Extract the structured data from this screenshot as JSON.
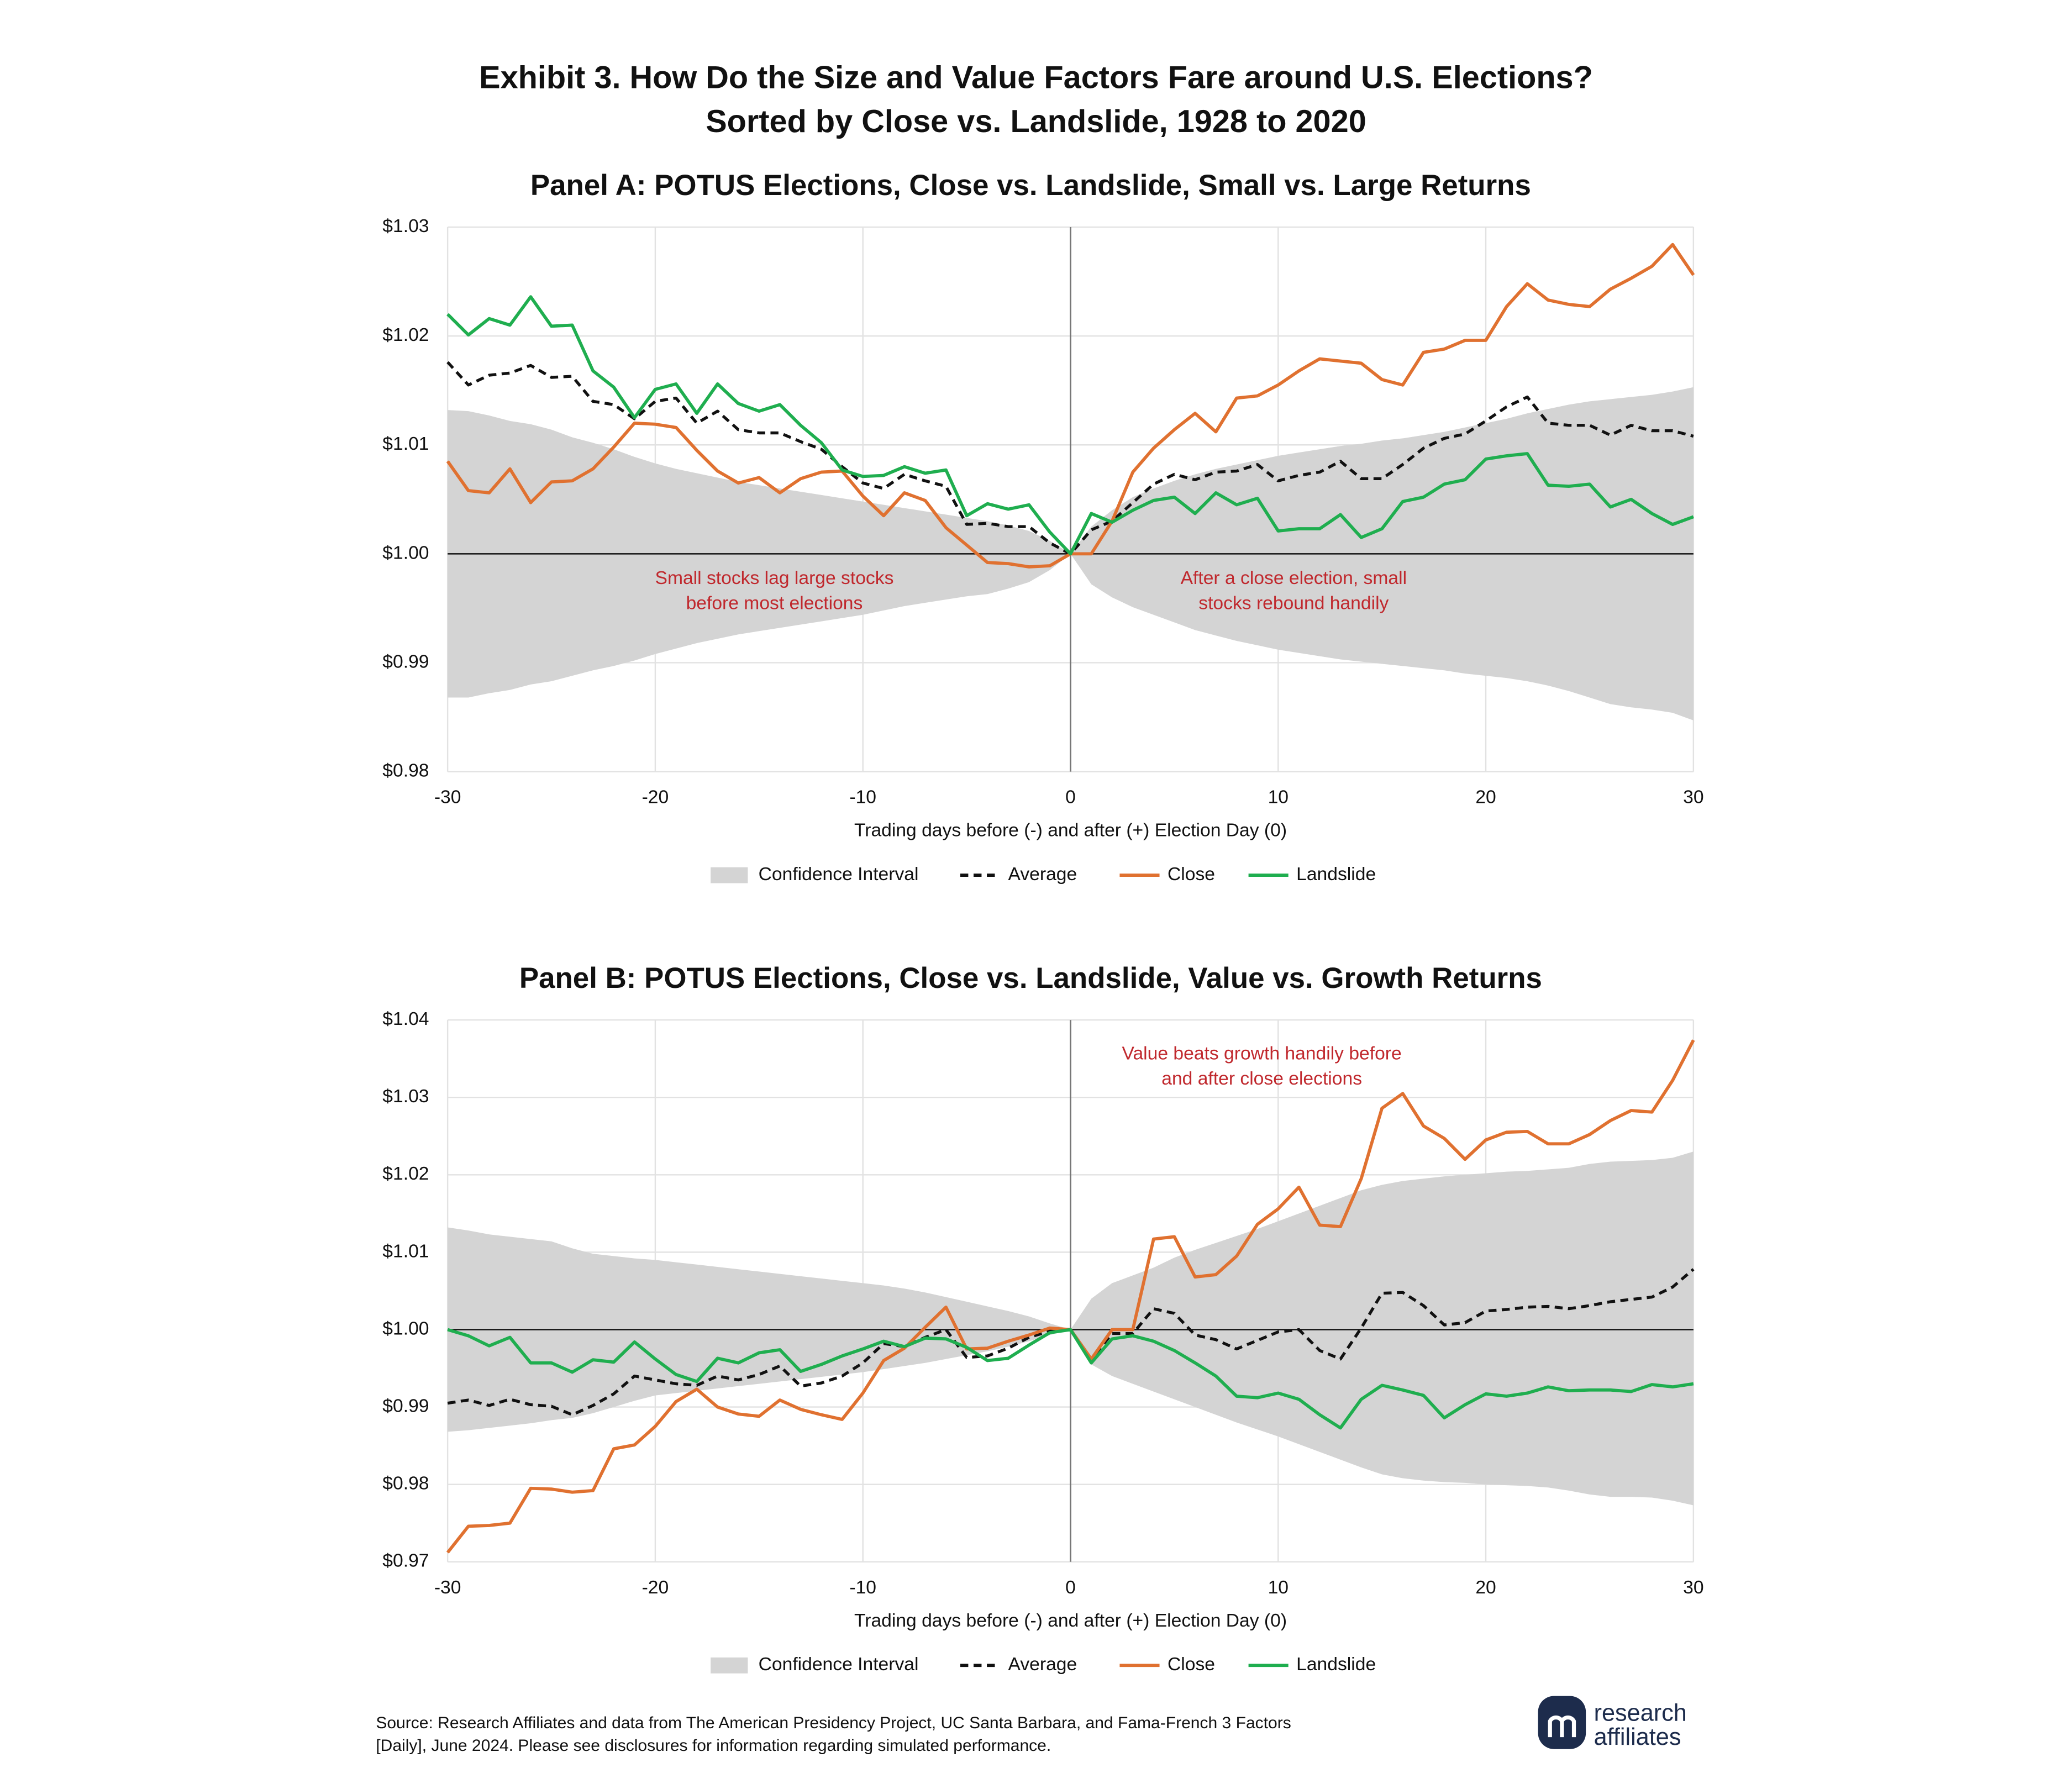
{
  "title": [
    "Exhibit 3. How Do the Size and Value Factors Fare around U.S. Elections?",
    "Sorted by Close vs. Landslide, 1928 to 2020"
  ],
  "chart_data": [
    {
      "type": "line",
      "title": "Panel A: POTUS Elections, Close vs. Landslide, Small vs. Large Returns",
      "xlabel": "Trading days before (-) and after (+) Election Day (0)",
      "x": [
        -30,
        -29,
        -28,
        -27,
        -26,
        -25,
        -24,
        -23,
        -22,
        -21,
        -20,
        -19,
        -18,
        -17,
        -16,
        -15,
        -14,
        -13,
        -12,
        -11,
        -10,
        -9,
        -8,
        -7,
        -6,
        -5,
        -4,
        -3,
        -2,
        -1,
        0,
        1,
        2,
        3,
        4,
        5,
        6,
        7,
        8,
        9,
        10,
        11,
        12,
        13,
        14,
        15,
        16,
        17,
        18,
        19,
        20,
        21,
        22,
        23,
        24,
        25,
        26,
        27,
        28,
        29,
        30
      ],
      "xlim": [
        -30,
        30
      ],
      "xticks": [
        -30,
        -20,
        -10,
        0,
        10,
        20,
        30
      ],
      "ylim": [
        0.98,
        1.03
      ],
      "yticks": [
        {
          "value": 0.98,
          "label": "$0.98"
        },
        {
          "value": 0.99,
          "label": "$0.99"
        },
        {
          "value": 1.0,
          "label": "$1.00"
        },
        {
          "value": 1.01,
          "label": "$1.01"
        },
        {
          "value": 1.02,
          "label": "$1.02"
        },
        {
          "value": 1.03,
          "label": "$1.03"
        }
      ],
      "grid": true,
      "reference_lines": {
        "x": 0,
        "y": 1.0
      },
      "annotations": [
        [
          "Small stocks lag large stocks",
          "before most elections"
        ],
        [
          "After a close election, small",
          "stocks rebound handily"
        ]
      ],
      "series": [
        {
          "name": "Confidence Interval",
          "style": "area",
          "color": "#d4d4d4",
          "upper": [
            1.0132,
            1.0131,
            1.0127,
            1.0122,
            1.0119,
            1.0114,
            1.0107,
            1.0102,
            1.0096,
            1.0089,
            1.0083,
            1.0078,
            1.0074,
            1.007,
            1.0066,
            1.0063,
            1.006,
            1.0057,
            1.0054,
            1.0051,
            1.0048,
            1.0045,
            1.0042,
            1.0039,
            1.0036,
            1.0033,
            1.003,
            1.0026,
            1.0021,
            1.0012,
            1.0,
            1.0025,
            1.004,
            1.0052,
            1.006,
            1.0067,
            1.0073,
            1.0078,
            1.0082,
            1.0086,
            1.009,
            1.0093,
            1.0096,
            1.0099,
            1.0101,
            1.0104,
            1.0106,
            1.0109,
            1.0112,
            1.0116,
            1.012,
            1.0124,
            1.0129,
            1.0133,
            1.0137,
            1.014,
            1.0142,
            1.0144,
            1.0146,
            1.0149,
            1.0153
          ],
          "lower": [
            0.9868,
            0.9868,
            0.9872,
            0.9875,
            0.988,
            0.9883,
            0.9888,
            0.9893,
            0.9897,
            0.9902,
            0.9908,
            0.9913,
            0.9918,
            0.9922,
            0.9926,
            0.9929,
            0.9932,
            0.9935,
            0.9938,
            0.9941,
            0.9944,
            0.9948,
            0.9952,
            0.9955,
            0.9958,
            0.9961,
            0.9963,
            0.9968,
            0.9974,
            0.9985,
            1.0,
            0.9972,
            0.996,
            0.9951,
            0.9944,
            0.9937,
            0.993,
            0.9925,
            0.992,
            0.9916,
            0.9912,
            0.9909,
            0.9906,
            0.9903,
            0.9901,
            0.9899,
            0.9897,
            0.9895,
            0.9893,
            0.989,
            0.9888,
            0.9886,
            0.9883,
            0.9879,
            0.9874,
            0.9868,
            0.9862,
            0.9859,
            0.9857,
            0.9854,
            0.9847
          ]
        },
        {
          "name": "Average",
          "style": "dashed",
          "color": "#111111",
          "values": [
            1.0176,
            1.0155,
            1.0164,
            1.0166,
            1.0173,
            1.0162,
            1.0163,
            1.014,
            1.0137,
            1.0124,
            1.014,
            1.0143,
            1.012,
            1.0131,
            1.0114,
            1.0111,
            1.0111,
            1.0103,
            1.0096,
            1.008,
            1.0065,
            1.006,
            1.0073,
            1.0067,
            1.0062,
            1.0027,
            1.0028,
            1.0025,
            1.0025,
            1.001,
            1.0,
            1.0022,
            1.003,
            1.0047,
            1.0064,
            1.0073,
            1.0068,
            1.0075,
            1.0076,
            1.0082,
            1.0067,
            1.0072,
            1.0075,
            1.0085,
            1.0069,
            1.0069,
            1.0082,
            1.0097,
            1.0106,
            1.011,
            1.0122,
            1.0135,
            1.0144,
            1.012,
            1.0118,
            1.0118,
            1.0109,
            1.0118,
            1.0113,
            1.0113,
            1.0108
          ]
        },
        {
          "name": "Close",
          "style": "solid",
          "color": "#e07130",
          "values": [
            1.0085,
            1.0058,
            1.0056,
            1.0078,
            1.0047,
            1.0066,
            1.0067,
            1.0078,
            1.0098,
            1.012,
            1.0119,
            1.0116,
            1.0095,
            1.0076,
            1.0065,
            1.007,
            1.0056,
            1.0069,
            1.0075,
            1.0076,
            1.0053,
            1.0035,
            1.0056,
            1.0049,
            1.0024,
            1.0008,
            0.9992,
            0.9991,
            0.9988,
            0.9989,
            1.0,
            1.0,
            1.003,
            1.0075,
            1.0097,
            1.0114,
            1.0129,
            1.0112,
            1.0143,
            1.0145,
            1.0155,
            1.0168,
            1.0179,
            1.0177,
            1.0175,
            1.016,
            1.0155,
            1.0185,
            1.0188,
            1.0196,
            1.0196,
            1.0227,
            1.0248,
            1.0233,
            1.0229,
            1.0227,
            1.0243,
            1.0253,
            1.0264,
            1.0284,
            1.0256
          ]
        },
        {
          "name": "Landslide",
          "style": "solid",
          "color": "#1fae4f",
          "values": [
            1.022,
            1.0201,
            1.0216,
            1.021,
            1.0236,
            1.0209,
            1.021,
            1.0168,
            1.0153,
            1.0125,
            1.0151,
            1.0156,
            1.0129,
            1.0156,
            1.0138,
            1.0131,
            1.0137,
            1.0118,
            1.0102,
            1.0077,
            1.0071,
            1.0072,
            1.008,
            1.0074,
            1.0077,
            1.0035,
            1.0046,
            1.0041,
            1.0045,
            1.002,
            1.0,
            1.0037,
            1.0029,
            1.004,
            1.0049,
            1.0052,
            1.0037,
            1.0056,
            1.0045,
            1.0051,
            1.0021,
            1.0023,
            1.0023,
            1.0036,
            1.0015,
            1.0023,
            1.0048,
            1.0052,
            1.0064,
            1.0068,
            1.0087,
            1.009,
            1.0092,
            1.0063,
            1.0062,
            1.0064,
            1.0043,
            1.005,
            1.0037,
            1.0027,
            1.0034
          ]
        }
      ]
    },
    {
      "type": "line",
      "title": "Panel B: POTUS Elections, Close vs. Landslide, Value vs. Growth Returns",
      "xlabel": "Trading days before (-) and after (+) Election Day (0)",
      "x": [
        -30,
        -29,
        -28,
        -27,
        -26,
        -25,
        -24,
        -23,
        -22,
        -21,
        -20,
        -19,
        -18,
        -17,
        -16,
        -15,
        -14,
        -13,
        -12,
        -11,
        -10,
        -9,
        -8,
        -7,
        -6,
        -5,
        -4,
        -3,
        -2,
        -1,
        0,
        1,
        2,
        3,
        4,
        5,
        6,
        7,
        8,
        9,
        10,
        11,
        12,
        13,
        14,
        15,
        16,
        17,
        18,
        19,
        20,
        21,
        22,
        23,
        24,
        25,
        26,
        27,
        28,
        29,
        30
      ],
      "xlim": [
        -30,
        30
      ],
      "xticks": [
        -30,
        -20,
        -10,
        0,
        10,
        20,
        30
      ],
      "ylim": [
        0.97,
        1.04
      ],
      "yticks": [
        {
          "value": 0.97,
          "label": "$0.97"
        },
        {
          "value": 0.98,
          "label": "$0.98"
        },
        {
          "value": 0.99,
          "label": "$0.99"
        },
        {
          "value": 1.0,
          "label": "$1.00"
        },
        {
          "value": 1.01,
          "label": "$1.01"
        },
        {
          "value": 1.02,
          "label": "$1.02"
        },
        {
          "value": 1.03,
          "label": "$1.03"
        },
        {
          "value": 1.04,
          "label": "$1.04"
        }
      ],
      "grid": true,
      "reference_lines": {
        "x": 0,
        "y": 1.0
      },
      "annotations": [
        [
          "Value beats growth handily before",
          "and after close elections"
        ]
      ],
      "series": [
        {
          "name": "Confidence Interval",
          "style": "area",
          "color": "#d4d4d4",
          "upper": [
            1.0132,
            1.0128,
            1.0123,
            1.012,
            1.0117,
            1.0114,
            1.0105,
            1.0098,
            1.0095,
            1.0092,
            1.009,
            1.0087,
            1.0084,
            1.0081,
            1.0078,
            1.0075,
            1.0072,
            1.0069,
            1.0066,
            1.0063,
            1.006,
            1.0057,
            1.0053,
            1.0048,
            1.0042,
            1.0036,
            1.003,
            1.0024,
            1.0017,
            1.0008,
            1.0,
            1.004,
            1.006,
            1.007,
            1.008,
            1.0093,
            1.0103,
            1.0112,
            1.0121,
            1.013,
            1.014,
            1.015,
            1.016,
            1.017,
            1.018,
            1.0187,
            1.0192,
            1.0195,
            1.0198,
            1.02,
            1.0202,
            1.0204,
            1.0205,
            1.0207,
            1.0209,
            1.0214,
            1.0217,
            1.0218,
            1.0219,
            1.0222,
            1.023
          ],
          "lower": [
            0.9868,
            0.987,
            0.9873,
            0.9876,
            0.9879,
            0.9883,
            0.9886,
            0.9892,
            0.99,
            0.9908,
            0.9915,
            0.9918,
            0.9921,
            0.9924,
            0.9927,
            0.993,
            0.9933,
            0.9936,
            0.9939,
            0.9942,
            0.9945,
            0.9949,
            0.9953,
            0.9957,
            0.9962,
            0.9967,
            0.9972,
            0.9978,
            0.9985,
            0.9993,
            1.0,
            0.9955,
            0.994,
            0.993,
            0.992,
            0.991,
            0.99,
            0.989,
            0.988,
            0.9871,
            0.9862,
            0.9852,
            0.9842,
            0.9832,
            0.9822,
            0.9813,
            0.9808,
            0.9805,
            0.9803,
            0.9802,
            0.98,
            0.9799,
            0.9798,
            0.9796,
            0.9792,
            0.9787,
            0.9784,
            0.9784,
            0.9783,
            0.9779,
            0.9773
          ]
        },
        {
          "name": "Average",
          "style": "dashed",
          "color": "#111111",
          "values": [
            0.9905,
            0.9909,
            0.9902,
            0.991,
            0.9903,
            0.9901,
            0.989,
            0.9902,
            0.9917,
            0.994,
            0.9935,
            0.993,
            0.9928,
            0.994,
            0.9935,
            0.9942,
            0.9953,
            0.9927,
            0.9931,
            0.994,
            0.9957,
            0.9982,
            0.9978,
            0.999,
            1.0,
            0.9964,
            0.9966,
            0.9976,
            0.999,
            0.9998,
            1.0,
            0.9962,
            0.9995,
            0.9995,
            1.0027,
            1.0021,
            0.9993,
            0.9987,
            0.9975,
            0.9986,
            0.9997,
            1.0,
            0.9973,
            0.9962,
            1.0002,
            1.0047,
            1.0048,
            1.0031,
            1.0006,
            1.0009,
            1.0024,
            1.0026,
            1.0029,
            1.003,
            1.0027,
            1.0031,
            1.0036,
            1.0039,
            1.0042,
            1.0055,
            1.0078
          ]
        },
        {
          "name": "Close",
          "style": "solid",
          "color": "#e07130",
          "values": [
            0.9712,
            0.9746,
            0.9747,
            0.975,
            0.9795,
            0.9794,
            0.979,
            0.9792,
            0.9846,
            0.9851,
            0.9875,
            0.9907,
            0.9923,
            0.99,
            0.9891,
            0.9888,
            0.9909,
            0.9897,
            0.989,
            0.9884,
            0.9918,
            0.996,
            0.9976,
            1.0003,
            1.0029,
            0.9975,
            0.9976,
            0.9985,
            0.9993,
            1.0002,
            1.0,
            0.9962,
            1.0,
            1.0,
            1.0117,
            1.012,
            1.0068,
            1.0071,
            1.0095,
            1.0136,
            1.0156,
            1.0184,
            1.0135,
            1.0133,
            1.0195,
            1.0286,
            1.0305,
            1.0263,
            1.0247,
            1.022,
            1.0245,
            1.0255,
            1.0256,
            1.024,
            1.024,
            1.0252,
            1.027,
            1.0283,
            1.0281,
            1.0322,
            1.0374
          ]
        },
        {
          "name": "Landslide",
          "style": "solid",
          "color": "#1fae4f",
          "values": [
            1.0,
            0.9992,
            0.9979,
            0.999,
            0.9957,
            0.9957,
            0.9945,
            0.9961,
            0.9958,
            0.9984,
            0.9962,
            0.9942,
            0.9933,
            0.9963,
            0.9957,
            0.997,
            0.9974,
            0.9946,
            0.9955,
            0.9966,
            0.9975,
            0.9985,
            0.9978,
            0.9989,
            0.9988,
            0.9977,
            0.996,
            0.9963,
            0.998,
            0.9996,
            1.0,
            0.9957,
            0.9988,
            0.9992,
            0.9985,
            0.9973,
            0.9957,
            0.994,
            0.9914,
            0.9912,
            0.9918,
            0.991,
            0.989,
            0.9873,
            0.991,
            0.9928,
            0.9922,
            0.9915,
            0.9886,
            0.9903,
            0.9917,
            0.9914,
            0.9918,
            0.9926,
            0.9921,
            0.9922,
            0.9922,
            0.992,
            0.9929,
            0.9926,
            0.993
          ]
        }
      ]
    }
  ],
  "source": [
    "Source: Research Affiliates and data from The American Presidency Project, UC Santa Barbara, and Fama-French 3 Factors",
    "[Daily], June 2024. Please see disclosures for information regarding simulated performance."
  ],
  "logo": [
    "research",
    "affiliates"
  ]
}
